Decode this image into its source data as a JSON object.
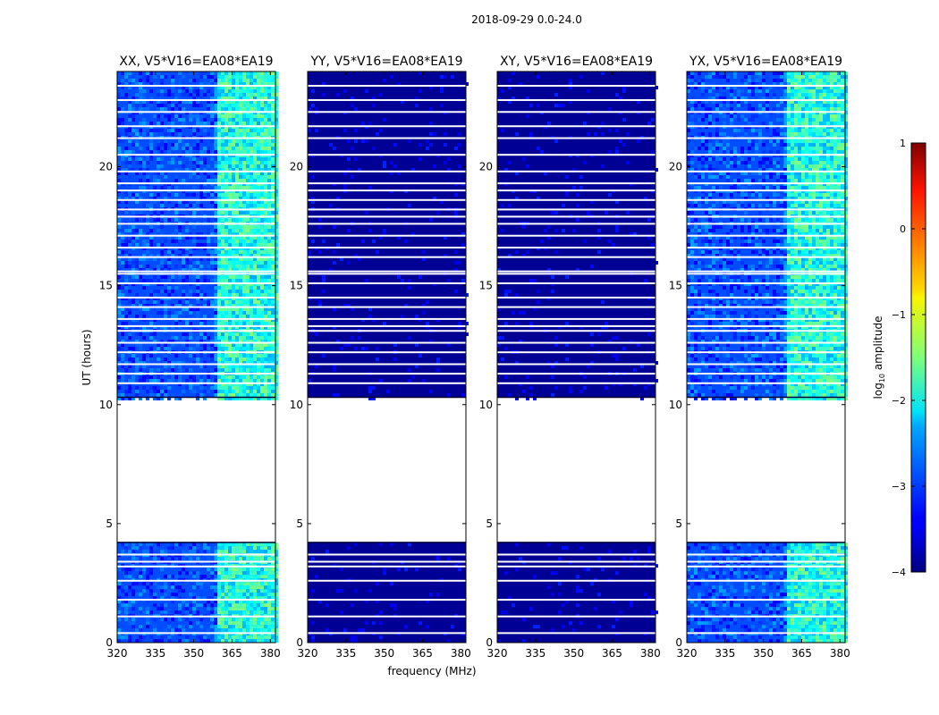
{
  "figure": {
    "suptitle": "2018-09-29 0.0-24.0",
    "xlabel": "frequency (MHz)",
    "ylabel": "UT (hours)"
  },
  "colorbar": {
    "label": "log10 amplitude",
    "label_base": "log",
    "label_sub": "10",
    "label_rest": " amplitude",
    "range": [
      -4,
      1
    ],
    "ticks": [
      {
        "value": 1,
        "label": "1"
      },
      {
        "value": 0,
        "label": "0"
      },
      {
        "value": -1,
        "label": "−1"
      },
      {
        "value": -2,
        "label": "−2"
      },
      {
        "value": -3,
        "label": "−3"
      },
      {
        "value": -4,
        "label": "−4"
      }
    ],
    "colormap": "jet"
  },
  "chart_data": [
    {
      "type": "heatmap",
      "title": "XX, V5*V16=EA08*EA19",
      "xlabel": "frequency (MHz)",
      "ylabel": "UT (hours)",
      "xlim": [
        320,
        382
      ],
      "ylim": [
        0,
        24
      ],
      "xticks": [
        320,
        335,
        350,
        365,
        380
      ],
      "yticks": [
        0,
        5,
        10,
        15,
        20
      ],
      "baseline_log_amplitude": -3.0,
      "bright_band_mhz": [
        358,
        382
      ],
      "bright_band_log_amplitude": -2.0,
      "data_gap_hours": [
        4.2,
        10.3
      ],
      "flagged_hours": [
        0.4,
        1.1,
        1.8,
        2.6,
        3.2,
        3.4,
        3.7,
        10.9,
        11.3,
        11.7,
        12.2,
        12.6,
        13.1,
        13.3,
        13.6,
        14.1,
        14.5,
        15.1,
        15.5,
        15.6,
        16.2,
        16.6,
        17.1,
        17.6,
        17.9,
        18.2,
        18.6,
        19.0,
        19.3,
        19.8,
        20.5,
        21.2,
        21.7,
        22.3,
        22.8,
        23.4
      ]
    },
    {
      "type": "heatmap",
      "title": "YY, V5*V16=EA08*EA19",
      "xlabel": "frequency (MHz)",
      "ylabel": "UT (hours)",
      "xlim": [
        320,
        382
      ],
      "ylim": [
        0,
        24
      ],
      "xticks": [
        320,
        335,
        350,
        365,
        380
      ],
      "yticks": [
        0,
        5,
        10,
        15,
        20
      ],
      "baseline_log_amplitude": -3.9,
      "bright_band_mhz": null,
      "bright_band_log_amplitude": null,
      "data_gap_hours": [
        4.2,
        10.3
      ],
      "flagged_hours": [
        0.4,
        1.1,
        1.8,
        2.6,
        3.2,
        3.4,
        3.7,
        10.9,
        11.3,
        11.7,
        12.2,
        12.6,
        13.1,
        13.3,
        13.6,
        14.1,
        14.5,
        15.1,
        15.5,
        15.6,
        16.2,
        16.6,
        17.1,
        17.6,
        17.9,
        18.2,
        18.6,
        19.0,
        19.3,
        19.8,
        20.5,
        21.2,
        21.7,
        22.3,
        22.8,
        23.4
      ]
    },
    {
      "type": "heatmap",
      "title": "XY, V5*V16=EA08*EA19",
      "xlabel": "frequency (MHz)",
      "ylabel": "UT (hours)",
      "xlim": [
        320,
        382
      ],
      "ylim": [
        0,
        24
      ],
      "xticks": [
        320,
        335,
        350,
        365,
        380
      ],
      "yticks": [
        0,
        5,
        10,
        15,
        20
      ],
      "baseline_log_amplitude": -3.9,
      "bright_band_mhz": null,
      "bright_band_log_amplitude": null,
      "data_gap_hours": [
        4.2,
        10.3
      ],
      "flagged_hours": [
        0.4,
        1.1,
        1.8,
        2.6,
        3.2,
        3.4,
        3.7,
        10.9,
        11.3,
        11.7,
        12.2,
        12.6,
        13.1,
        13.3,
        13.6,
        14.1,
        14.5,
        15.1,
        15.5,
        15.6,
        16.2,
        16.6,
        17.1,
        17.6,
        17.9,
        18.2,
        18.6,
        19.0,
        19.3,
        19.8,
        20.5,
        21.2,
        21.7,
        22.3,
        22.8,
        23.4
      ]
    },
    {
      "type": "heatmap",
      "title": "YX, V5*V16=EA08*EA19",
      "xlabel": "frequency (MHz)",
      "ylabel": "UT (hours)",
      "xlim": [
        320,
        382
      ],
      "ylim": [
        0,
        24
      ],
      "xticks": [
        320,
        335,
        350,
        365,
        380
      ],
      "yticks": [
        0,
        5,
        10,
        15,
        20
      ],
      "baseline_log_amplitude": -3.0,
      "bright_band_mhz": [
        358,
        382
      ],
      "bright_band_log_amplitude": -2.0,
      "data_gap_hours": [
        4.2,
        10.3
      ],
      "flagged_hours": [
        0.4,
        1.1,
        1.8,
        2.6,
        3.2,
        3.4,
        3.7,
        10.9,
        11.3,
        11.7,
        12.2,
        12.6,
        13.1,
        13.3,
        13.6,
        14.1,
        14.5,
        15.1,
        15.5,
        15.6,
        16.2,
        16.6,
        17.1,
        17.6,
        17.9,
        18.2,
        18.6,
        19.0,
        19.3,
        19.8,
        20.5,
        21.2,
        21.7,
        22.3,
        22.8,
        23.4
      ]
    }
  ]
}
